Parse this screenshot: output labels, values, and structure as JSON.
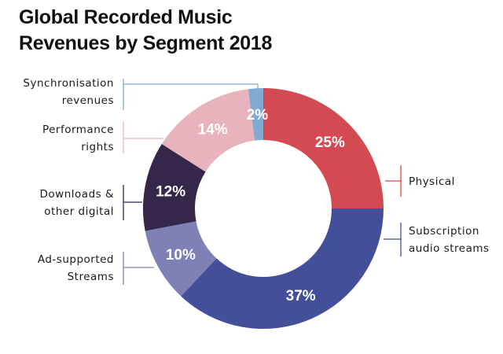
{
  "chart_data": {
    "type": "pie",
    "variant": "donut",
    "title_lines": [
      "Global Recorded Music",
      "Revenues by Segment 2018"
    ],
    "unit": "%",
    "start": "top, clockwise",
    "slices": [
      {
        "label": [
          "Physical"
        ],
        "value": 25,
        "display": "25%",
        "color": "#d44a53",
        "side": "right"
      },
      {
        "label": [
          "Subscription",
          "audio streams"
        ],
        "value": 37,
        "display": "37%",
        "color": "#434f98",
        "side": "right"
      },
      {
        "label": [
          "Ad-supported",
          "Streams"
        ],
        "value": 10,
        "display": "10%",
        "color": "#7f80b6",
        "side": "left"
      },
      {
        "label": [
          "Downloads &",
          "other digital"
        ],
        "value": 12,
        "display": "12%",
        "color": "#35274a",
        "side": "left"
      },
      {
        "label": [
          "Performance",
          "rights"
        ],
        "value": 14,
        "display": "14%",
        "color": "#e8b3bc",
        "side": "left"
      },
      {
        "label": [
          "Synchronisation",
          "revenues"
        ],
        "value": 2,
        "display": "2%",
        "color": "#80aad2",
        "side": "left"
      }
    ]
  }
}
